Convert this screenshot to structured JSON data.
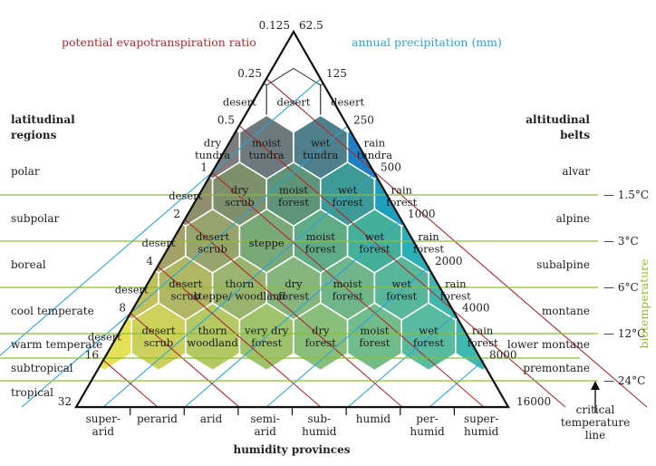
{
  "header": {
    "pet_axis_title": "potential evapotranspiration ratio",
    "precip_axis_title": "annual precipitation (mm)",
    "humidity_axis_title": "humidity provinces",
    "latitudinal_title": "latitudinal regions",
    "altitudinal_title": "altitudinal belts",
    "biotemperature_title": "biotemperature",
    "critical_line_label": "critical temperature line"
  },
  "pet_ticks": [
    "0.125",
    "0.25",
    "0.5",
    "1",
    "2",
    "4",
    "8",
    "16",
    "32"
  ],
  "precip_ticks": [
    "62.5",
    "125",
    "250",
    "500",
    "1000",
    "2000",
    "4000",
    "8000",
    "16000"
  ],
  "latitudinal_regions": [
    "polar",
    "subpolar",
    "boreal",
    "cool temperate",
    "warm temperate",
    "subtropical",
    "tropical"
  ],
  "altitudinal_belts": [
    "alvar",
    "alpine",
    "subalpine",
    "montane",
    "lower montane",
    "premontane"
  ],
  "temperatures": [
    "1.5°C",
    "3°C",
    "6°C",
    "12°C",
    "24°C"
  ],
  "humidity_provinces": [
    "super-arid",
    "perarid",
    "arid",
    "semi-arid",
    "sub-humid",
    "humid",
    "per-humid",
    "super-humid"
  ],
  "zones": [
    {
      "row": 1,
      "labels": [
        "desert",
        "desert",
        "desert"
      ]
    },
    {
      "row": 2,
      "labels": [
        "dry tundra",
        "moist tundra",
        "wet tundra",
        "rain tundra"
      ]
    },
    {
      "row": 3,
      "labels": [
        "desert",
        "dry scrub",
        "moist forest",
        "wet forest",
        "rain forest"
      ]
    },
    {
      "row": 4,
      "labels": [
        "desert",
        "desert scrub",
        "steppe",
        "moist forest",
        "wet forest",
        "rain forest"
      ]
    },
    {
      "row": 5,
      "labels": [
        "desert",
        "desert scrub",
        "thorn steppe/ woodland",
        "dry forest",
        "moist forest",
        "wet forest",
        "rain forest"
      ]
    },
    {
      "row": 6,
      "labels": [
        "desert",
        "desert scrub",
        "thorn woodland",
        "very dry forest",
        "dry forest",
        "moist forest",
        "wet forest",
        "rain forest"
      ]
    }
  ],
  "colors": {
    "pet_line": "#b0282b",
    "precip_line": "#2aa3d6",
    "temperature_line": "#8cbf2e",
    "hex_border": "#ffffff"
  }
}
